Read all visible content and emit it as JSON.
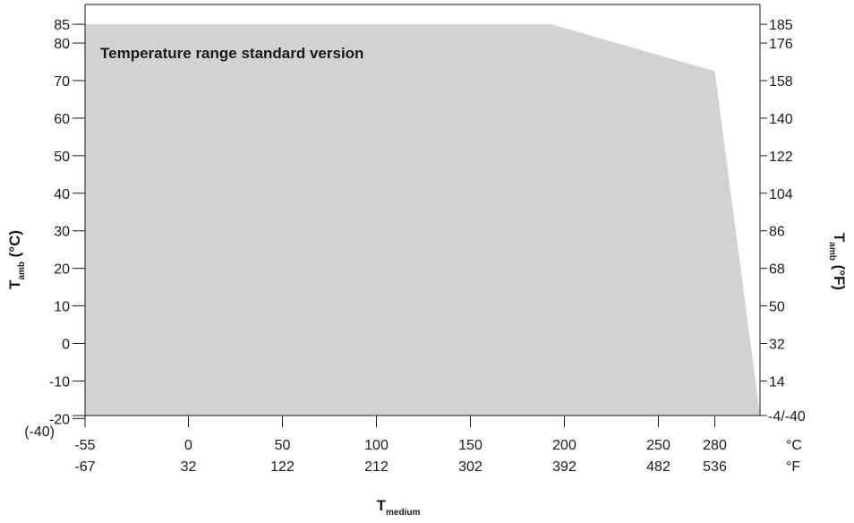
{
  "chart_data": {
    "type": "area",
    "title": "",
    "region": {
      "label": "Temperature range standard version",
      "color": "#d1d2d4",
      "x": [
        -55,
        193,
        280
      ],
      "y": [
        85,
        85,
        72.5
      ]
    },
    "xlim": [
      -55,
      280
    ],
    "ylim": [
      -25,
      88
    ],
    "x_ticks": [
      {
        "value": -55,
        "c": "-55",
        "f": "-67"
      },
      {
        "value": 0,
        "c": "0",
        "f": "32"
      },
      {
        "value": 50,
        "c": "50",
        "f": "122"
      },
      {
        "value": 100,
        "c": "100",
        "f": "212"
      },
      {
        "value": 150,
        "c": "150",
        "f": "302"
      },
      {
        "value": 200,
        "c": "200",
        "f": "392"
      },
      {
        "value": 250,
        "c": "250",
        "f": "482"
      },
      {
        "value": 280,
        "c": "280",
        "f": "536"
      }
    ],
    "x_unit_c": "°C",
    "x_unit_f": "°F",
    "y_ticks_left": [
      {
        "value": 85,
        "label": "85"
      },
      {
        "value": 80,
        "label": "80"
      },
      {
        "value": 70,
        "label": "70"
      },
      {
        "value": 60,
        "label": "60"
      },
      {
        "value": 50,
        "label": "50"
      },
      {
        "value": 40,
        "label": "40"
      },
      {
        "value": 30,
        "label": "30"
      },
      {
        "value": 20,
        "label": "20"
      },
      {
        "value": 10,
        "label": "10"
      },
      {
        "value": 0,
        "label": "0"
      },
      {
        "value": -10,
        "label": "-10"
      },
      {
        "value": -20,
        "label": "-20"
      }
    ],
    "y_min_label_left": "(-40)",
    "y_ticks_right": [
      {
        "value": 85,
        "label": "185"
      },
      {
        "value": 80,
        "label": "176"
      },
      {
        "value": 70,
        "label": "158"
      },
      {
        "value": 60,
        "label": "140"
      },
      {
        "value": 50,
        "label": "122"
      },
      {
        "value": 40,
        "label": "104"
      },
      {
        "value": 30,
        "label": "86"
      },
      {
        "value": 20,
        "label": "68"
      },
      {
        "value": 10,
        "label": "50"
      },
      {
        "value": 0,
        "label": "32"
      },
      {
        "value": -10,
        "label": "14"
      }
    ],
    "y_min_label_right": "-4/-40",
    "xlabel": {
      "main": "T",
      "sub": "medium"
    },
    "ylabel_left": {
      "main": "T",
      "sub": "amb",
      "unit": " (°C)"
    },
    "ylabel_right": {
      "main": "T",
      "sub": "amb",
      "unit": " (°F)"
    },
    "grid": false
  }
}
